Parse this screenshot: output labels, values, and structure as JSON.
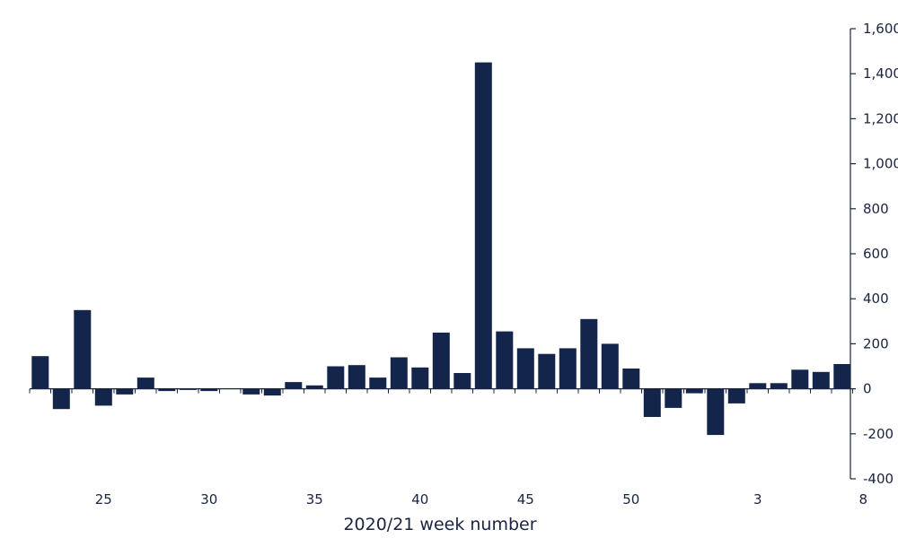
{
  "chart_data": {
    "type": "bar",
    "xlabel": "2020/21 week number",
    "ylabel": "",
    "ylim": [
      -400,
      1600
    ],
    "bar_color": "#13254a",
    "axis_color": "#1a2440",
    "y_axis_position": "right",
    "grid": false,
    "y_ticks": [
      -400,
      -200,
      0,
      200,
      400,
      600,
      800,
      1000,
      1200,
      1400,
      1600
    ],
    "y_tick_labels": [
      "-400",
      "-200",
      "0",
      "200",
      "400",
      "600",
      "800",
      "1,000",
      "1,200",
      "1,400",
      "1,600"
    ],
    "x_tick_labels": [
      {
        "week": 25,
        "label": "25"
      },
      {
        "week": 30,
        "label": "30"
      },
      {
        "week": 35,
        "label": "35"
      },
      {
        "week": 40,
        "label": "40"
      },
      {
        "week": 45,
        "label": "45"
      },
      {
        "week": 50,
        "label": "50"
      },
      {
        "week": 3,
        "label": "3"
      },
      {
        "week": 8,
        "label": "8"
      }
    ],
    "categories": [
      "22",
      "23",
      "24",
      "25",
      "26",
      "27",
      "28",
      "29",
      "30",
      "31",
      "32",
      "33",
      "34",
      "35",
      "36",
      "37",
      "38",
      "39",
      "40",
      "41",
      "42",
      "43",
      "44",
      "45",
      "46",
      "47",
      "48",
      "49",
      "50",
      "51",
      "52",
      "53",
      "1",
      "2",
      "3",
      "4",
      "5",
      "6",
      "7",
      "8"
    ],
    "values": [
      145,
      -90,
      350,
      -75,
      -25,
      50,
      -10,
      -5,
      -10,
      0,
      -25,
      -30,
      30,
      15,
      100,
      105,
      50,
      140,
      95,
      250,
      70,
      1450,
      255,
      180,
      155,
      180,
      310,
      200,
      90,
      -125,
      -85,
      -20,
      -205,
      -65,
      25,
      25,
      85,
      75,
      110,
      0
    ]
  }
}
